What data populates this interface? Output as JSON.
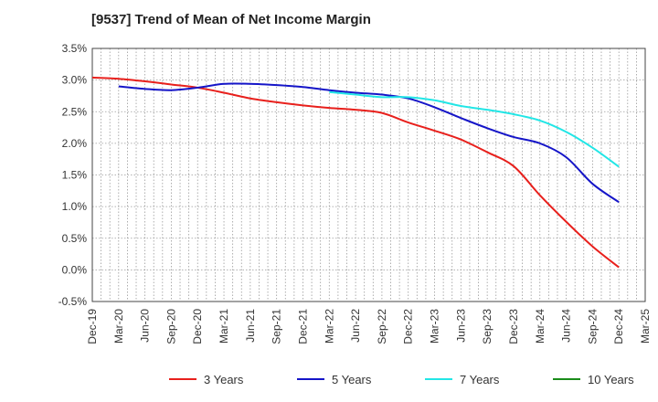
{
  "chart_data": {
    "type": "line",
    "title": "[9537]  Trend of Mean of Net Income Margin",
    "xlabel": "",
    "ylabel": "",
    "x_ticks": [
      "Dec-19",
      "Mar-20",
      "Jun-20",
      "Sep-20",
      "Dec-20",
      "Mar-21",
      "Jun-21",
      "Sep-21",
      "Dec-21",
      "Mar-22",
      "Jun-22",
      "Sep-22",
      "Dec-22",
      "Mar-23",
      "Jun-23",
      "Sep-23",
      "Dec-23",
      "Mar-24",
      "Jun-24",
      "Sep-24",
      "Dec-24",
      "Mar-25"
    ],
    "y_ticks": [
      "3.5%",
      "3.0%",
      "2.5%",
      "2.0%",
      "1.5%",
      "1.0%",
      "0.5%",
      "0.0%",
      "-0.5%"
    ],
    "ylim": [
      -0.5,
      3.5
    ],
    "grid": true,
    "legend_position": "bottom",
    "series": [
      {
        "name": "3 Years",
        "color": "#e8201c",
        "x": [
          "Dec-19",
          "Mar-20",
          "Jun-20",
          "Sep-20",
          "Dec-20",
          "Mar-21",
          "Jun-21",
          "Sep-21",
          "Dec-21",
          "Mar-22",
          "Jun-22",
          "Sep-22",
          "Dec-22",
          "Mar-23",
          "Jun-23",
          "Sep-23",
          "Dec-23",
          "Mar-24",
          "Jun-24",
          "Sep-24",
          "Dec-24"
        ],
        "values": [
          3.04,
          3.02,
          2.98,
          2.93,
          2.88,
          2.8,
          2.71,
          2.65,
          2.6,
          2.56,
          2.53,
          2.48,
          2.33,
          2.2,
          2.06,
          1.86,
          1.64,
          1.18,
          0.76,
          0.37,
          0.04
        ]
      },
      {
        "name": "5 Years",
        "color": "#1515c8",
        "x": [
          "Mar-20",
          "Jun-20",
          "Sep-20",
          "Dec-20",
          "Mar-21",
          "Jun-21",
          "Sep-21",
          "Dec-21",
          "Mar-22",
          "Jun-22",
          "Sep-22",
          "Dec-22",
          "Mar-23",
          "Jun-23",
          "Sep-23",
          "Dec-23",
          "Mar-24",
          "Jun-24",
          "Sep-24",
          "Dec-24"
        ],
        "values": [
          2.9,
          2.86,
          2.84,
          2.88,
          2.94,
          2.94,
          2.92,
          2.89,
          2.84,
          2.8,
          2.77,
          2.71,
          2.57,
          2.4,
          2.24,
          2.1,
          2.0,
          1.78,
          1.36,
          1.07
        ]
      },
      {
        "name": "7 Years",
        "color": "#22e6e6",
        "x": [
          "Mar-22",
          "Jun-22",
          "Sep-22",
          "Dec-22",
          "Mar-23",
          "Jun-23",
          "Sep-23",
          "Dec-23",
          "Mar-24",
          "Jun-24",
          "Sep-24",
          "Dec-24"
        ],
        "values": [
          2.81,
          2.77,
          2.73,
          2.73,
          2.68,
          2.59,
          2.53,
          2.46,
          2.36,
          2.18,
          1.93,
          1.63
        ]
      },
      {
        "name": "10 Years",
        "color": "#1a8c1a",
        "x": [],
        "values": []
      }
    ]
  }
}
